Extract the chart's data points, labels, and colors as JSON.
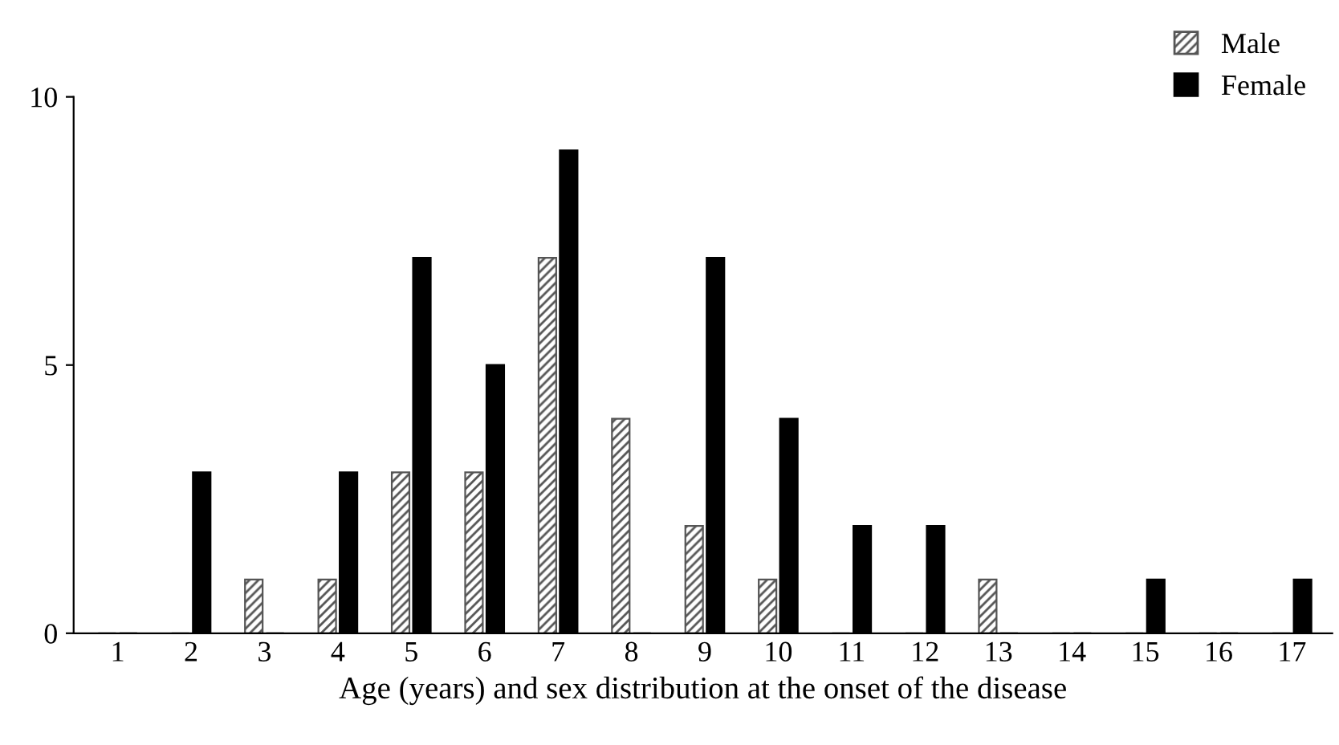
{
  "chart_data": {
    "type": "bar",
    "xlabel": "Age (years) and sex distribution at the onset of the disease",
    "categories": [
      "1",
      "2",
      "3",
      "4",
      "5",
      "6",
      "7",
      "8",
      "9",
      "10",
      "11",
      "12",
      "13",
      "14",
      "15",
      "16",
      "17"
    ],
    "series": [
      {
        "name": "Male",
        "color": "#555555",
        "values": [
          0,
          0,
          1,
          1,
          3,
          3,
          7,
          4,
          2,
          1,
          0,
          0,
          1,
          0,
          0,
          0,
          0
        ]
      },
      {
        "name": "Female",
        "color": "#000000",
        "values": [
          0,
          3,
          0,
          3,
          7,
          5,
          9,
          0,
          7,
          4,
          2,
          2,
          0,
          0,
          1,
          0,
          1
        ]
      }
    ],
    "ylim": [
      0,
      10
    ],
    "yticks": [
      0,
      5,
      10
    ],
    "grid": false,
    "legend": "top right"
  }
}
